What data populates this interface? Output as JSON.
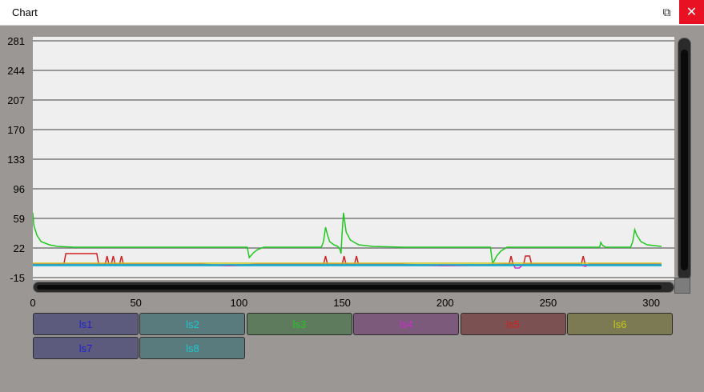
{
  "window": {
    "title": "Chart",
    "restore_icon": "restore-icon",
    "close_icon": "close-icon"
  },
  "chart_data": {
    "type": "line",
    "title": "",
    "xlabel": "",
    "ylabel": "",
    "xlim": [
      0,
      305
    ],
    "ylim": [
      -15,
      281
    ],
    "yticks": [
      281,
      244,
      207,
      170,
      133,
      96,
      59,
      22,
      -15
    ],
    "xticks": [
      0,
      50,
      100,
      150,
      200,
      250,
      300
    ],
    "grid": "horizontal",
    "legend_position": "bottom",
    "series": [
      {
        "name": "ls1",
        "color": "#2020d0",
        "button_bg": "#5c5b7e",
        "x": [
          0,
          305
        ],
        "y": [
          0,
          0
        ]
      },
      {
        "name": "ls2",
        "color": "#19c8cf",
        "button_bg": "#5a7b7d",
        "x": [
          0,
          305
        ],
        "y": [
          0,
          0
        ]
      },
      {
        "name": "ls3",
        "color": "#22c822",
        "button_bg": "#5e7b5e",
        "x": [
          0,
          0.5,
          2,
          4,
          8,
          12,
          20,
          40,
          80,
          104,
          105,
          107,
          109,
          112,
          140,
          141,
          142,
          143,
          144,
          146,
          148,
          149,
          149.5,
          150,
          150.7,
          152,
          154,
          158,
          165,
          180,
          222,
          223,
          225,
          227,
          230,
          275,
          275.5,
          276.5,
          278,
          290,
          291,
          292,
          293,
          295,
          298,
          305
        ],
        "y": [
          66,
          50,
          38,
          30,
          26,
          24,
          23,
          23,
          23,
          23,
          10,
          16,
          20,
          23,
          23,
          30,
          48,
          38,
          30,
          26,
          24,
          20,
          15,
          40,
          66,
          42,
          32,
          26,
          24,
          23,
          23,
          2,
          12,
          18,
          23,
          23,
          29,
          25,
          23,
          23,
          30,
          45,
          38,
          30,
          26,
          24
        ]
      },
      {
        "name": "ls4",
        "color": "#c830c8",
        "button_bg": "#7b5a7b",
        "x": [
          0,
          80,
          95,
          110,
          175,
          200,
          233,
          234,
          236,
          238,
          265,
          268,
          270,
          305
        ],
        "y": [
          2,
          2,
          0,
          2,
          2,
          0,
          2,
          -3,
          -3,
          2,
          2,
          -1,
          2,
          2
        ]
      },
      {
        "name": "ls5",
        "color": "#d02020",
        "button_bg": "#7b5151",
        "x": [
          0,
          15,
          16,
          31,
          32,
          35,
          36,
          37,
          38,
          39,
          40,
          41,
          42,
          43,
          44,
          45,
          141,
          142,
          143,
          150,
          151,
          152,
          156,
          157,
          158,
          222,
          231,
          232,
          233,
          238,
          239,
          240,
          241,
          242,
          243,
          266,
          267,
          268,
          305
        ],
        "y": [
          1,
          1,
          15,
          15,
          1,
          1,
          12,
          1,
          1,
          12,
          1,
          1,
          1,
          12,
          1,
          1,
          1,
          12,
          1,
          1,
          12,
          1,
          1,
          12,
          1,
          1,
          1,
          12,
          1,
          1,
          12,
          12,
          12,
          1,
          1,
          1,
          12,
          1,
          1
        ]
      },
      {
        "name": "ls6",
        "color": "#c8c818",
        "button_bg": "#7b7a52",
        "x": [
          0,
          50,
          100,
          150,
          200,
          250,
          305
        ],
        "y": [
          3,
          3,
          3,
          3,
          3,
          3,
          3
        ]
      },
      {
        "name": "ls7",
        "color": "#2020d0",
        "button_bg": "#5c5b7e",
        "x": [
          0,
          305
        ],
        "y": [
          1,
          1
        ]
      },
      {
        "name": "ls8",
        "color": "#19c8cf",
        "button_bg": "#5a7b7d",
        "x": [
          0,
          305
        ],
        "y": [
          1,
          1
        ]
      }
    ]
  }
}
